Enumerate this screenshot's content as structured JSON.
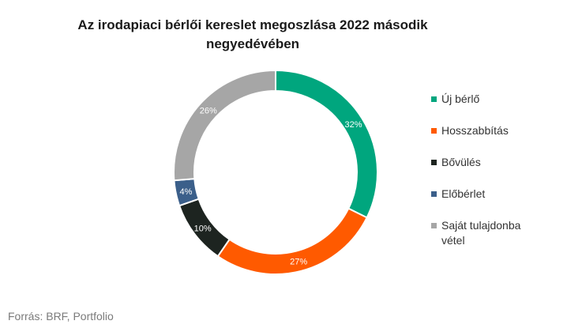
{
  "chart_data": {
    "type": "pie",
    "title_line1": "Az irodapiaci bérlői kereslet megoszlása 2022 második",
    "title_line2": "negyedévében",
    "slices": [
      {
        "label": "Új bérlő",
        "value": 32,
        "data_label": "32%",
        "color": "#00a67e"
      },
      {
        "label": "Hosszabbítás",
        "value": 27,
        "data_label": "27%",
        "color": "#ff5a00"
      },
      {
        "label": "Bővülés",
        "value": 10,
        "data_label": "10%",
        "color": "#1d2420"
      },
      {
        "label": "Előbérlet",
        "value": 4,
        "data_label": "4%",
        "color": "#3b5f8a"
      },
      {
        "label": "Saját tulajdonba vétel",
        "value": 26,
        "data_label": "26%",
        "color": "#a6a6a6"
      }
    ],
    "legend_position": "right",
    "start_angle": "top",
    "direction": "clockwise"
  },
  "source": "Forrás: BRF, Portfolio"
}
